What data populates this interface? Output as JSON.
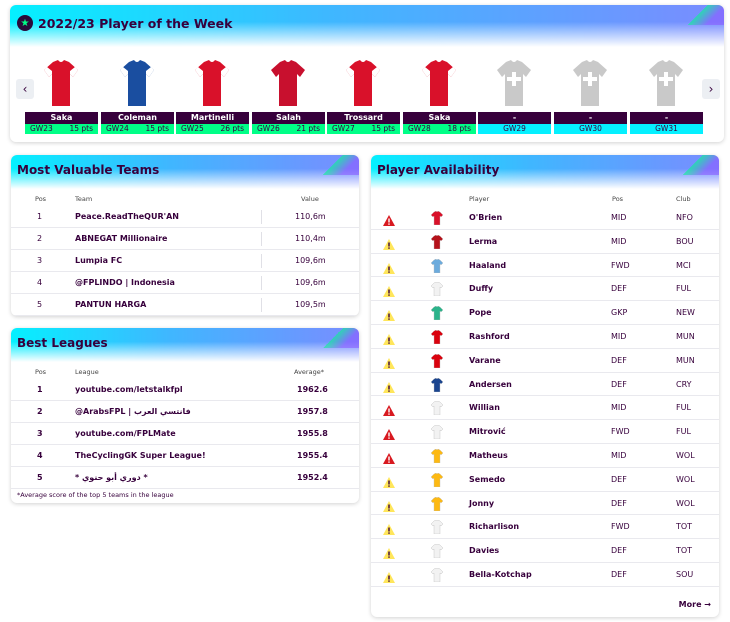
{
  "potw": {
    "title": "2022/23 Player of the Week",
    "icons": {
      "badge": "star-icon",
      "prev": "chevron-left-icon",
      "next": "chevron-right-icon"
    },
    "prev_glyph": "‹",
    "next_glyph": "›",
    "cards": [
      {
        "name": "Saka",
        "gw": "GW23",
        "pts": "15 pts",
        "kit": "arsenal",
        "primary": "#d9112a",
        "secondary": "#ffffff"
      },
      {
        "name": "Coleman",
        "gw": "GW24",
        "pts": "15 pts",
        "kit": "everton",
        "primary": "#1a4ea0",
        "secondary": "#ffffff"
      },
      {
        "name": "Martinelli",
        "gw": "GW25",
        "pts": "26 pts",
        "kit": "arsenal",
        "primary": "#d9112a",
        "secondary": "#ffffff"
      },
      {
        "name": "Salah",
        "gw": "GW26",
        "pts": "21 pts",
        "kit": "liverpool",
        "primary": "#c8102e",
        "secondary": "#c8102e"
      },
      {
        "name": "Trossard",
        "gw": "GW27",
        "pts": "15 pts",
        "kit": "arsenal",
        "primary": "#d9112a",
        "secondary": "#ffffff"
      },
      {
        "name": "Saka",
        "gw": "GW28",
        "pts": "18 pts",
        "kit": "arsenal",
        "primary": "#d9112a",
        "secondary": "#ffffff"
      },
      {
        "name": "-",
        "gw": "GW29",
        "pts": "",
        "kit": "placeholder",
        "primary": "#c9c9c9",
        "secondary": "#c9c9c9"
      },
      {
        "name": "-",
        "gw": "GW30",
        "pts": "",
        "kit": "placeholder",
        "primary": "#c9c9c9",
        "secondary": "#c9c9c9"
      },
      {
        "name": "-",
        "gw": "GW31",
        "pts": "",
        "kit": "placeholder",
        "primary": "#c9c9c9",
        "secondary": "#c9c9c9"
      }
    ]
  },
  "mvt": {
    "title": "Most Valuable Teams",
    "headers": {
      "pos": "Pos",
      "team": "Team",
      "value": "Value"
    },
    "rows": [
      {
        "pos": "1",
        "team": "Peace.ReadTheQUR'AN",
        "value": "110,6m"
      },
      {
        "pos": "2",
        "team": "ABNEGAT Millionaire",
        "value": "110,4m"
      },
      {
        "pos": "3",
        "team": "Lumpia FC",
        "value": "109,6m"
      },
      {
        "pos": "4",
        "team": "@FPLINDO | Indonesia",
        "value": "109,6m"
      },
      {
        "pos": "5",
        "team": "PANTUN HARGA",
        "value": "109,5m"
      }
    ]
  },
  "bl": {
    "title": "Best Leagues",
    "headers": {
      "pos": "Pos",
      "league": "League",
      "average": "Average*"
    },
    "rows": [
      {
        "pos": "1",
        "league": "youtube.com/letstalkfpl",
        "average": "1962.6"
      },
      {
        "pos": "2",
        "league": "@ArabsFPL | فانتسي العرب",
        "average": "1957.8"
      },
      {
        "pos": "3",
        "league": "youtube.com/FPLMate",
        "average": "1955.8"
      },
      {
        "pos": "4",
        "league": "TheCyclingGK Super League!",
        "average": "1955.4"
      },
      {
        "pos": "5",
        "league": "* دوري أبو حنوي *",
        "average": "1952.4"
      }
    ],
    "footnote": "*Average score of the top 5 teams in the league"
  },
  "pa": {
    "title": "Player Availability",
    "headers": {
      "player": "Player",
      "pos": "Pos",
      "club": "Club"
    },
    "status_colors": {
      "injured": "#d81920",
      "doubtful": "#ffe65b"
    },
    "rows": [
      {
        "status": "injured",
        "player": "O'Brien",
        "pos": "MID",
        "club": "NFO",
        "shirt": "#d9112a"
      },
      {
        "status": "doubtful",
        "player": "Lerma",
        "pos": "MID",
        "club": "BOU",
        "shirt": "#b5121b"
      },
      {
        "status": "doubtful",
        "player": "Haaland",
        "pos": "FWD",
        "club": "MCI",
        "shirt": "#6cabdd"
      },
      {
        "status": "doubtful",
        "player": "Duffy",
        "pos": "DEF",
        "club": "FUL",
        "shirt": "#f2f2f2"
      },
      {
        "status": "doubtful",
        "player": "Pope",
        "pos": "GKP",
        "club": "NEW",
        "shirt": "#2bb38a"
      },
      {
        "status": "doubtful",
        "player": "Rashford",
        "pos": "MID",
        "club": "MUN",
        "shirt": "#da020e"
      },
      {
        "status": "doubtful",
        "player": "Varane",
        "pos": "DEF",
        "club": "MUN",
        "shirt": "#da020e"
      },
      {
        "status": "doubtful",
        "player": "Andersen",
        "pos": "DEF",
        "club": "CRY",
        "shirt": "#1b458f"
      },
      {
        "status": "injured",
        "player": "Willian",
        "pos": "MID",
        "club": "FUL",
        "shirt": "#f2f2f2"
      },
      {
        "status": "injured",
        "player": "Mitrović",
        "pos": "FWD",
        "club": "FUL",
        "shirt": "#f2f2f2"
      },
      {
        "status": "injured",
        "player": "Matheus",
        "pos": "MID",
        "club": "WOL",
        "shirt": "#fdb913"
      },
      {
        "status": "doubtful",
        "player": "Semedo",
        "pos": "DEF",
        "club": "WOL",
        "shirt": "#fdb913"
      },
      {
        "status": "doubtful",
        "player": "Jonny",
        "pos": "DEF",
        "club": "WOL",
        "shirt": "#fdb913"
      },
      {
        "status": "doubtful",
        "player": "Richarlison",
        "pos": "FWD",
        "club": "TOT",
        "shirt": "#f2f2f2"
      },
      {
        "status": "doubtful",
        "player": "Davies",
        "pos": "DEF",
        "club": "TOT",
        "shirt": "#f2f2f2"
      },
      {
        "status": "doubtful",
        "player": "Bella-Kotchap",
        "pos": "DEF",
        "club": "SOU",
        "shirt": "#f2f2f2"
      }
    ],
    "more": "More →"
  }
}
